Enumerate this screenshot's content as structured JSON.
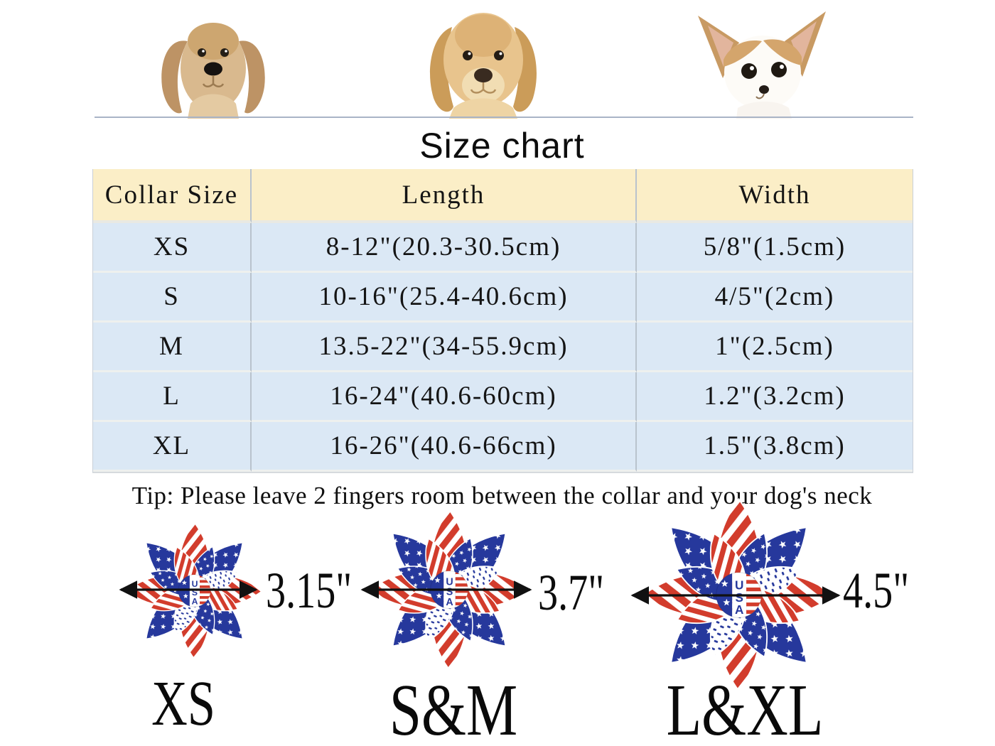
{
  "title": "Size chart",
  "tip": "Tip: Please leave 2 fingers room between the collar and your dog's neck",
  "chart_data": {
    "type": "table",
    "title": "Size chart",
    "columns": [
      "Collar Size",
      "Length",
      "Width"
    ],
    "rows": [
      [
        "XS",
        "8-12\"(20.3-30.5cm)",
        "5/8\"(1.5cm)"
      ],
      [
        "S",
        "10-16\"(25.4-40.6cm)",
        "4/5\"(2cm)"
      ],
      [
        "M",
        "13.5-22\"(34-55.9cm)",
        "1\"(2.5cm)"
      ],
      [
        "L",
        "16-24\"(40.6-60cm)",
        "1.2\"(3.2cm)"
      ],
      [
        "XL",
        "16-26\"(40.6-66cm)",
        "1.5\"(3.8cm)"
      ]
    ]
  },
  "bows": [
    {
      "label": "XS",
      "diameter": "3.15\""
    },
    {
      "label": "S&M",
      "diameter": "3.7\""
    },
    {
      "label": "L&XL",
      "diameter": "4.5\""
    }
  ],
  "icons": {
    "dogs": [
      "dachshund-dog",
      "golden-retriever-puppy",
      "chihuahua-dog"
    ],
    "bow": "usa-flag-flower-bow",
    "arrow": "diameter-arrow"
  },
  "colors": {
    "header_bg": "#fbeec7",
    "row_bg": "#dbe8f5",
    "flag_red": "#d23c2c",
    "flag_blue": "#26389c",
    "flag_white": "#ffffff",
    "text": "#141414"
  }
}
